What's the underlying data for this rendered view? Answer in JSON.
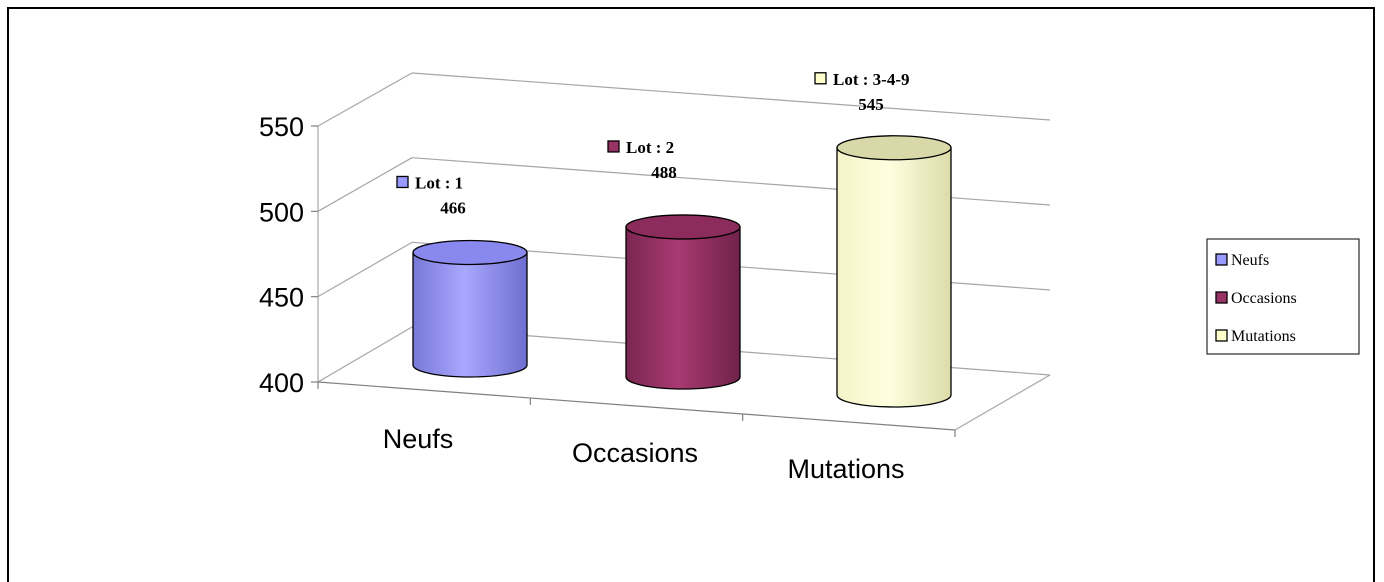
{
  "chart_data": {
    "type": "bar",
    "style": "3d-cylinder",
    "categories": [
      "Neufs",
      "Occasions",
      "Mutations"
    ],
    "values": [
      466,
      488,
      545
    ],
    "data_labels": [
      "Lot : 1",
      "Lot : 2",
      "Lot : 3-4-9"
    ],
    "colors": [
      "#9999ff",
      "#993366",
      "#ffffcc"
    ],
    "ylim": [
      400,
      550
    ],
    "yticks": [
      400,
      450,
      500,
      550
    ],
    "grid": true,
    "legend": {
      "position": "right",
      "entries": [
        "Neufs",
        "Occasions",
        "Mutations"
      ]
    }
  }
}
